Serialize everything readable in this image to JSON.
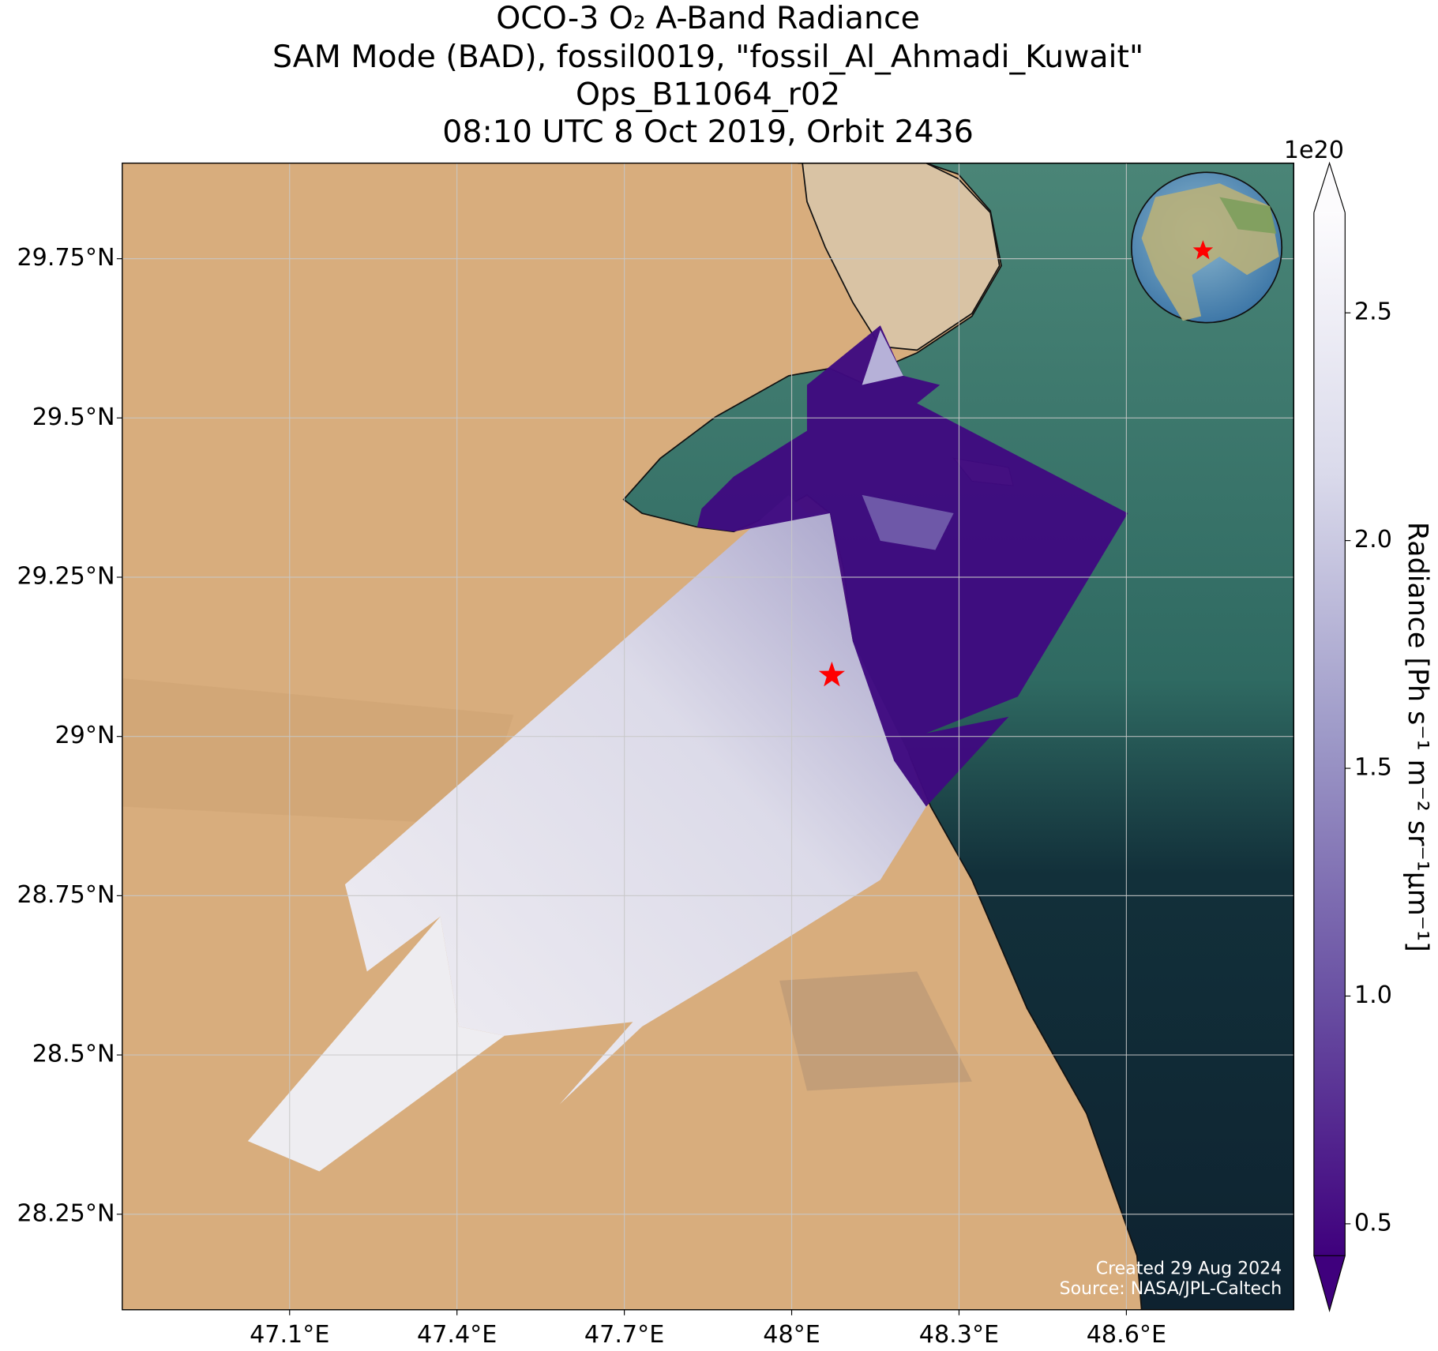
{
  "title": [
    "OCO-3 O₂ A-Band Radiance",
    "SAM Mode (BAD), fossil0019, \"fossil_Al_Ahmadi_Kuwait\"",
    "Ops_B11064_r02",
    "08:10 UTC 8 Oct 2019, Orbit 2436"
  ],
  "map": {
    "xlim": [
      46.8,
      48.9
    ],
    "ylim": [
      28.1,
      29.9
    ],
    "xticks": [
      {
        "value": 47.1,
        "label": "47.1°E"
      },
      {
        "value": 47.4,
        "label": "47.4°E"
      },
      {
        "value": 47.7,
        "label": "47.7°E"
      },
      {
        "value": 48.0,
        "label": "48°E"
      },
      {
        "value": 48.3,
        "label": "48.3°E"
      },
      {
        "value": 48.6,
        "label": "48.6°E"
      }
    ],
    "yticks": [
      {
        "value": 28.25,
        "label": "28.25°N"
      },
      {
        "value": 28.5,
        "label": "28.5°N"
      },
      {
        "value": 28.75,
        "label": "28.75°N"
      },
      {
        "value": 29.0,
        "label": "29°N"
      },
      {
        "value": 29.25,
        "label": "29.25°N"
      },
      {
        "value": 29.5,
        "label": "29.5°N"
      },
      {
        "value": 29.75,
        "label": "29.75°N"
      }
    ],
    "grid": true,
    "target": {
      "lon": 48.072,
      "lat": 29.096,
      "color": "#ff0000"
    }
  },
  "colorbar": {
    "label": "Radiance [Ph s⁻¹ m⁻² sr⁻¹μm⁻¹]",
    "exponent": "1e20",
    "lim": [
      0.43,
      2.72
    ],
    "ticks": [
      0.5,
      {
        "value": 1.0,
        "label": "1.0"
      },
      1.5,
      {
        "value": 2.0,
        "label": "2.0"
      },
      2.5
    ]
  },
  "footer": [
    "Created 29 Aug 2024",
    "Source: NASA/JPL-Caltech"
  ]
}
